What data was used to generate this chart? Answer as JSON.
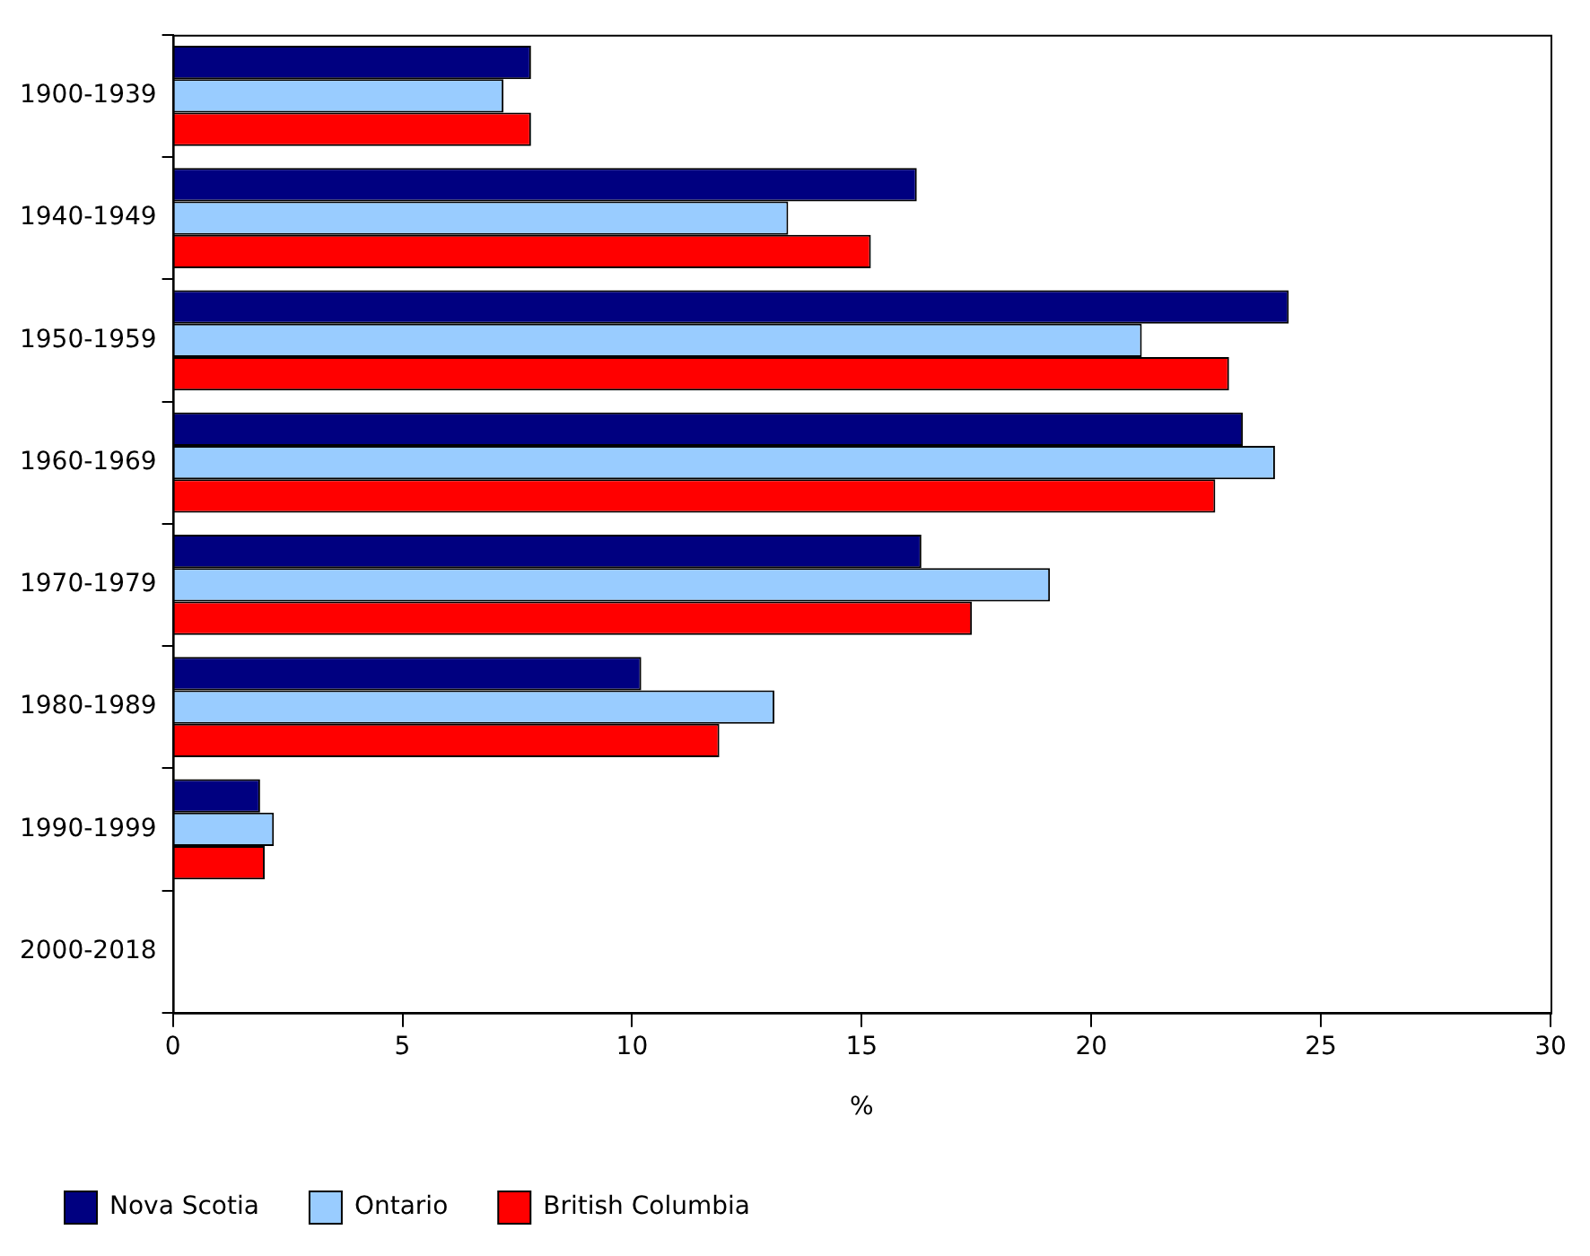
{
  "chart_data": {
    "type": "bar",
    "orientation": "horizontal",
    "xlabel": "%",
    "categories": [
      "1900-1939",
      "1940-1949",
      "1950-1959",
      "1960-1969",
      "1970-1979",
      "1980-1989",
      "1990-1999",
      "2000-2018"
    ],
    "series": [
      {
        "name": "Nova Scotia",
        "color": "#000080",
        "values": [
          7.8,
          16.2,
          24.3,
          23.3,
          16.3,
          10.2,
          1.9,
          0
        ]
      },
      {
        "name": "Ontario",
        "color": "#99ccff",
        "values": [
          7.2,
          13.4,
          21.1,
          24.0,
          19.1,
          13.1,
          2.2,
          0
        ]
      },
      {
        "name": "British Columbia",
        "color": "#ff0000",
        "values": [
          7.8,
          15.2,
          23.0,
          22.7,
          17.4,
          11.9,
          2.0,
          0
        ]
      }
    ],
    "xlim": [
      0,
      30
    ],
    "xticks": [
      0,
      5,
      10,
      15,
      20,
      25,
      30
    ],
    "grid": false,
    "legend": "bottom"
  }
}
